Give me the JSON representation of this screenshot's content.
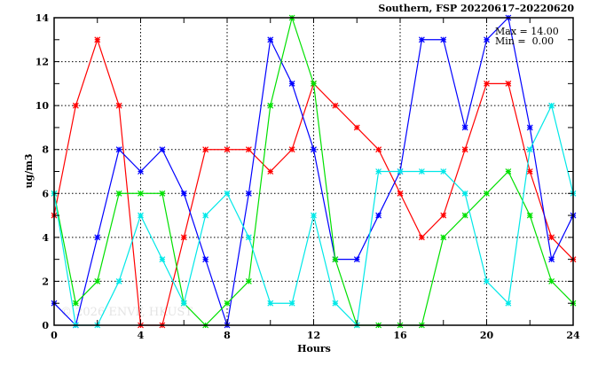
{
  "chart_data": {
    "type": "line",
    "title": "Southern, FSP 20220617–20220620",
    "xlabel": "Hours",
    "ylabel": "ug/m3",
    "xlim": [
      0,
      24
    ],
    "ylim": [
      0,
      14
    ],
    "xticks": [
      0,
      4,
      8,
      12,
      16,
      20,
      24
    ],
    "yticks": [
      0,
      2,
      4,
      6,
      8,
      10,
      12,
      14
    ],
    "grid": true,
    "annotations": {
      "max": "Max = 14.00",
      "min": "Min =  0.00"
    },
    "watermark": "© 2026 ENVF, HKUST",
    "x": [
      0,
      1,
      2,
      3,
      4,
      5,
      6,
      7,
      8,
      9,
      10,
      11,
      12,
      13,
      14,
      15,
      16,
      17,
      18,
      19,
      20,
      21,
      22,
      23,
      24
    ],
    "series": [
      {
        "name": "red",
        "color": "#ff0000",
        "values": [
          5,
          10,
          13,
          10,
          0,
          0,
          4,
          8,
          8,
          8,
          7,
          8,
          11,
          10,
          9,
          8,
          6,
          4,
          5,
          8,
          11,
          11,
          7,
          4,
          3
        ]
      },
      {
        "name": "blue",
        "color": "#0000ff",
        "values": [
          1,
          0,
          4,
          8,
          7,
          8,
          6,
          3,
          0,
          6,
          13,
          11,
          8,
          3,
          3,
          5,
          7,
          13,
          13,
          9,
          13,
          14,
          9,
          3,
          5
        ]
      },
      {
        "name": "green",
        "color": "#00e000",
        "values": [
          6,
          1,
          2,
          6,
          6,
          6,
          1,
          0,
          1,
          2,
          10,
          14,
          11,
          3,
          0,
          0,
          0,
          0,
          4,
          5,
          6,
          7,
          5,
          2,
          1
        ]
      },
      {
        "name": "cyan",
        "color": "#00e8e8",
        "values": [
          6,
          0,
          0,
          2,
          5,
          3,
          1,
          5,
          6,
          4,
          1,
          1,
          5,
          1,
          0,
          7,
          7,
          7,
          7,
          6,
          2,
          1,
          8,
          10,
          6
        ]
      }
    ]
  }
}
